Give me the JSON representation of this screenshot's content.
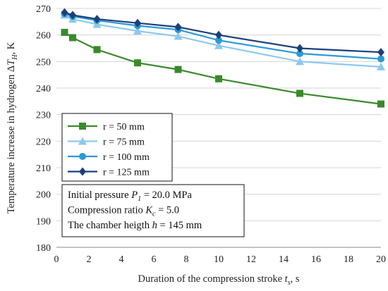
{
  "chart_data": {
    "type": "line",
    "title": "",
    "xlabel": "Duration of the compression stroke t_s, s",
    "xlabel_parts": {
      "text": "Duration of the compression stroke ",
      "sym": "t",
      "sub": "s",
      "tail": ", s"
    },
    "ylabel": "Temperature increase in hydrogen ΔT_H, K",
    "ylabel_parts": {
      "text": "Temperature increase in hydrogen Δ",
      "sym": "T",
      "sub": "H",
      "tail": ", K"
    },
    "xlim": [
      0,
      20
    ],
    "ylim": [
      180,
      270
    ],
    "xticks": [
      0,
      2,
      4,
      6,
      8,
      10,
      12,
      14,
      16,
      18,
      20
    ],
    "yticks": [
      180,
      190,
      200,
      210,
      220,
      230,
      240,
      250,
      260,
      270
    ],
    "grid": "horizontal",
    "legend_position": "middle-left",
    "series": [
      {
        "name": "r = 50 mm",
        "color": "#3a8a2a",
        "marker": "square",
        "x": [
          0.5,
          1,
          2.5,
          5,
          7.5,
          10,
          15,
          20
        ],
        "y": [
          261.0,
          259.0,
          254.5,
          249.5,
          247.0,
          243.5,
          238.0,
          234.0
        ]
      },
      {
        "name": "r = 75 mm",
        "color": "#8ec8ef",
        "marker": "triangle",
        "x": [
          0.5,
          1,
          2.5,
          5,
          7.5,
          10,
          15,
          20
        ],
        "y": [
          267.5,
          266.0,
          264.0,
          261.5,
          259.5,
          256.0,
          250.0,
          248.0
        ]
      },
      {
        "name": "r = 100 mm",
        "color": "#2b9ad6",
        "marker": "circle",
        "x": [
          0.5,
          1,
          2.5,
          5,
          7.5,
          10,
          15,
          20
        ],
        "y": [
          268.0,
          267.0,
          265.5,
          263.5,
          262.0,
          258.0,
          253.0,
          251.0
        ]
      },
      {
        "name": "r = 125 mm",
        "color": "#1d3f7a",
        "marker": "diamond",
        "x": [
          0.5,
          1,
          2.5,
          5,
          7.5,
          10,
          15,
          20
        ],
        "y": [
          268.5,
          267.5,
          266.0,
          264.5,
          263.0,
          260.0,
          255.0,
          253.5
        ]
      }
    ],
    "annotation": [
      {
        "pre": "Initial pressure ",
        "sym": "P",
        "sub": "1",
        "post": " = 20.0 MPa"
      },
      {
        "pre": "Compression ratio ",
        "sym": "K",
        "sub": "c",
        "post": " = 5.0"
      },
      {
        "pre": "The chamber heigth ",
        "sym": "h",
        "sub": "",
        "post": " = 145 mm"
      }
    ]
  }
}
